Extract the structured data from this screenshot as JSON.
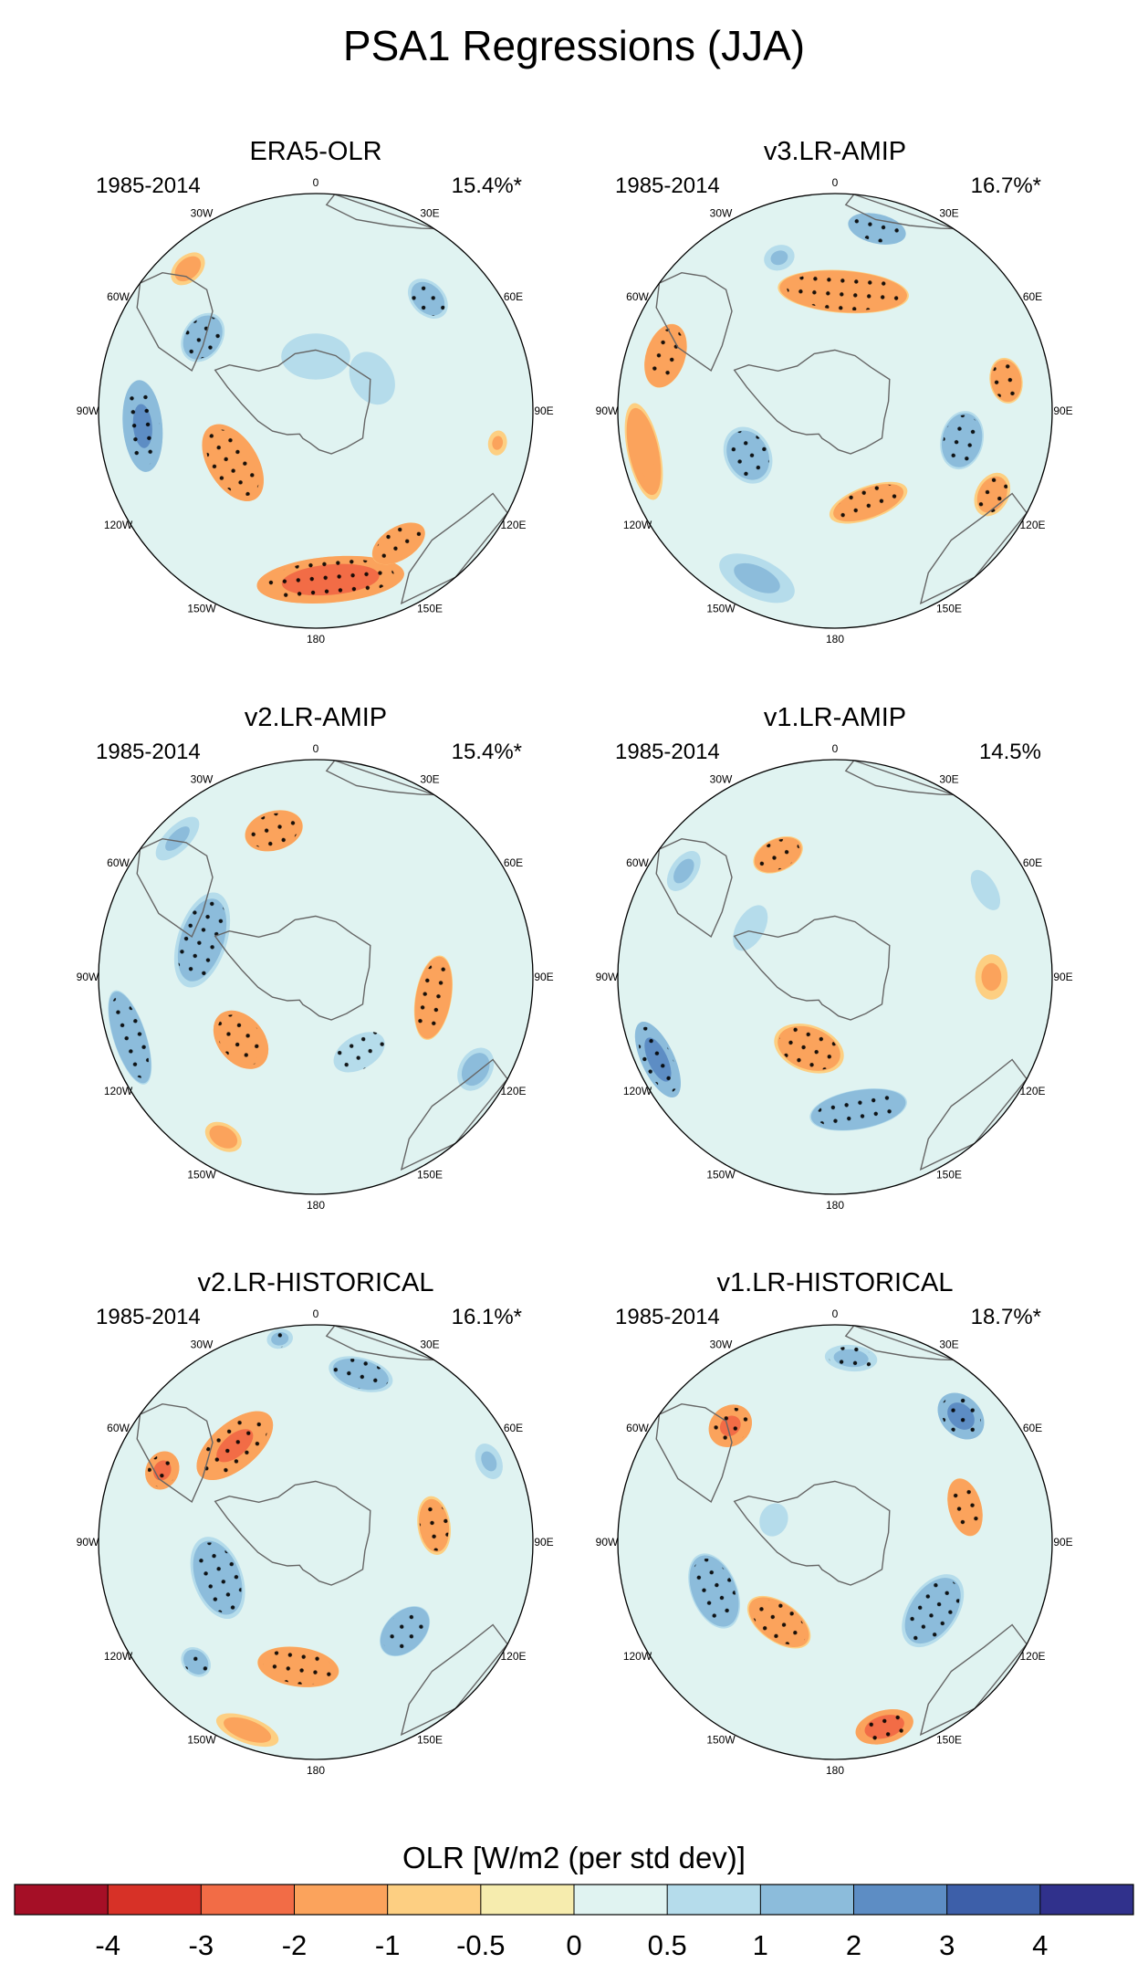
{
  "chart_data": {
    "type": "polar-contour-map",
    "title": "PSA1 Regressions (JJA)",
    "variable": "OLR",
    "colorbar": {
      "title": "OLR [W/m2 (per std dev)]",
      "levels": [
        "-4",
        "-3",
        "-2",
        "-1",
        "-0.5",
        "0",
        "0.5",
        "1",
        "2",
        "3",
        "4"
      ],
      "colors": [
        "#a50f26",
        "#d73127",
        "#f26c46",
        "#fba35c",
        "#fdcf82",
        "#f6ecae",
        "#e0f3f1",
        "#b5dceb",
        "#8cbcdb",
        "#5d8dc4",
        "#3d5fa9",
        "#30318c"
      ]
    },
    "lon_labels": [
      "0",
      "30E",
      "60E",
      "90E",
      "120E",
      "150E",
      "180",
      "150W",
      "120W",
      "90W",
      "60W",
      "30W"
    ],
    "panels": [
      {
        "name": "ERA5-OLR",
        "period": "1985-2014",
        "variance": "15.4%*",
        "blobs": [
          {
            "t": 175,
            "r": 0.78,
            "a": 45,
            "b": 14,
            "v": -3.3,
            "s": 1
          },
          {
            "t": 148,
            "r": 0.72,
            "a": 18,
            "b": 10,
            "v": -2.4,
            "s": 1
          },
          {
            "t": 238,
            "r": 0.45,
            "a": 26,
            "b": 15,
            "v": -2.5,
            "s": 1
          },
          {
            "t": 265,
            "r": 0.8,
            "a": 28,
            "b": 12,
            "v": 2.6,
            "s": 1
          },
          {
            "t": 303,
            "r": 0.62,
            "a": 16,
            "b": 12,
            "v": 2.0,
            "s": 1
          },
          {
            "t": 45,
            "r": 0.73,
            "a": 14,
            "b": 10,
            "v": 1.8,
            "s": 1
          },
          {
            "t": 318,
            "r": 0.88,
            "a": 12,
            "b": 8,
            "v": -1.6,
            "s": 0
          },
          {
            "t": 100,
            "r": 0.85,
            "a": 8,
            "b": 6,
            "v": -1.2,
            "s": 0
          },
          {
            "t": 60,
            "r": 0.3,
            "a": 20,
            "b": 15,
            "v": 1.0,
            "s": 0
          },
          {
            "t": 0,
            "r": 0.25,
            "a": 30,
            "b": 20,
            "v": 0.8,
            "s": 0
          }
        ]
      },
      {
        "name": "v3.LR-AMIP",
        "period": "1985-2014",
        "variance": "16.7%*",
        "blobs": [
          {
            "t": 4,
            "r": 0.55,
            "a": 40,
            "b": 13,
            "v": -2.3,
            "s": 1
          },
          {
            "t": 288,
            "r": 0.82,
            "a": 20,
            "b": 12,
            "v": -2.4,
            "s": 1
          },
          {
            "t": 258,
            "r": 0.9,
            "a": 30,
            "b": 10,
            "v": -2.0,
            "s": 0
          },
          {
            "t": 13,
            "r": 0.86,
            "a": 18,
            "b": 9,
            "v": 2.4,
            "s": 1
          },
          {
            "t": 103,
            "r": 0.6,
            "a": 18,
            "b": 13,
            "v": 2.1,
            "s": 1
          },
          {
            "t": 80,
            "r": 0.8,
            "a": 14,
            "b": 10,
            "v": -2.1,
            "s": 1
          },
          {
            "t": 160,
            "r": 0.45,
            "a": 25,
            "b": 10,
            "v": -2.0,
            "s": 1
          },
          {
            "t": 243,
            "r": 0.45,
            "a": 18,
            "b": 14,
            "v": 1.9,
            "s": 1
          },
          {
            "t": 118,
            "r": 0.82,
            "a": 14,
            "b": 10,
            "v": -1.8,
            "s": 1
          },
          {
            "t": 205,
            "r": 0.85,
            "a": 25,
            "b": 12,
            "v": 1.3,
            "s": 0
          },
          {
            "t": 340,
            "r": 0.75,
            "a": 10,
            "b": 8,
            "v": 1.2,
            "s": 0
          }
        ]
      },
      {
        "name": "v2.LR-AMIP",
        "period": "1985-2014",
        "variance": "15.4%*",
        "blobs": [
          {
            "t": 344,
            "r": 0.7,
            "a": 18,
            "b": 12,
            "v": -2.4,
            "s": 1
          },
          {
            "t": 230,
            "r": 0.45,
            "a": 20,
            "b": 14,
            "v": -2.5,
            "s": 1
          },
          {
            "t": 100,
            "r": 0.55,
            "a": 26,
            "b": 11,
            "v": -2.3,
            "s": 1
          },
          {
            "t": 210,
            "r": 0.85,
            "a": 12,
            "b": 8,
            "v": -1.6,
            "s": 0
          },
          {
            "t": 288,
            "r": 0.55,
            "a": 30,
            "b": 15,
            "v": 1.9,
            "s": 1
          },
          {
            "t": 252,
            "r": 0.9,
            "a": 30,
            "b": 10,
            "v": 2.3,
            "s": 1
          },
          {
            "t": 120,
            "r": 0.85,
            "a": 14,
            "b": 10,
            "v": 1.6,
            "s": 0
          },
          {
            "t": 150,
            "r": 0.4,
            "a": 20,
            "b": 12,
            "v": 1.0,
            "s": 1
          },
          {
            "t": 315,
            "r": 0.9,
            "a": 18,
            "b": 8,
            "v": 1.2,
            "s": 0
          }
        ]
      },
      {
        "name": "v1.LR-AMIP",
        "period": "1985-2014",
        "variance": "14.5%",
        "blobs": [
          {
            "t": 335,
            "r": 0.62,
            "a": 16,
            "b": 10,
            "v": -2.2,
            "s": 1
          },
          {
            "t": 245,
            "r": 0.9,
            "a": 25,
            "b": 10,
            "v": 3.0,
            "s": 1
          },
          {
            "t": 170,
            "r": 0.62,
            "a": 30,
            "b": 12,
            "v": 2.3,
            "s": 1
          },
          {
            "t": 200,
            "r": 0.35,
            "a": 22,
            "b": 14,
            "v": -2.0,
            "s": 1
          },
          {
            "t": 305,
            "r": 0.85,
            "a": 14,
            "b": 8,
            "v": 1.3,
            "s": 0
          },
          {
            "t": 90,
            "r": 0.72,
            "a": 14,
            "b": 10,
            "v": -1.3,
            "s": 0
          },
          {
            "t": 60,
            "r": 0.8,
            "a": 16,
            "b": 8,
            "v": 1.0,
            "s": 0
          },
          {
            "t": 300,
            "r": 0.45,
            "a": 18,
            "b": 10,
            "v": 1.0,
            "s": 0
          }
        ]
      },
      {
        "name": "v2.LR-HISTORICAL",
        "period": "1985-2014",
        "variance": "16.1%*",
        "blobs": [
          {
            "t": 320,
            "r": 0.58,
            "a": 28,
            "b": 14,
            "v": -2.6,
            "s": 1
          },
          {
            "t": 295,
            "r": 0.78,
            "a": 12,
            "b": 10,
            "v": -2.8,
            "s": 1
          },
          {
            "t": 82,
            "r": 0.55,
            "a": 18,
            "b": 10,
            "v": -2.0,
            "s": 1
          },
          {
            "t": 188,
            "r": 0.58,
            "a": 25,
            "b": 12,
            "v": -2.4,
            "s": 1
          },
          {
            "t": 200,
            "r": 0.92,
            "a": 20,
            "b": 8,
            "v": -1.6,
            "s": 0
          },
          {
            "t": 15,
            "r": 0.8,
            "a": 20,
            "b": 10,
            "v": 1.9,
            "s": 1
          },
          {
            "t": 250,
            "r": 0.48,
            "a": 26,
            "b": 15,
            "v": 2.0,
            "s": 1
          },
          {
            "t": 135,
            "r": 0.58,
            "a": 18,
            "b": 12,
            "v": 2.3,
            "s": 1
          },
          {
            "t": 225,
            "r": 0.78,
            "a": 10,
            "b": 8,
            "v": 1.8,
            "s": 1
          },
          {
            "t": 65,
            "r": 0.88,
            "a": 12,
            "b": 8,
            "v": 1.2,
            "s": 0
          },
          {
            "t": 350,
            "r": 0.95,
            "a": 8,
            "b": 6,
            "v": 1.4,
            "s": 1
          }
        ]
      },
      {
        "name": "v1.LR-HISTORICAL",
        "period": "1985-2014",
        "variance": "18.7%*",
        "blobs": [
          {
            "t": 318,
            "r": 0.72,
            "a": 14,
            "b": 12,
            "v": -2.6,
            "s": 1
          },
          {
            "t": 75,
            "r": 0.62,
            "a": 18,
            "b": 10,
            "v": -2.4,
            "s": 1
          },
          {
            "t": 165,
            "r": 0.88,
            "a": 18,
            "b": 10,
            "v": -3.4,
            "s": 1
          },
          {
            "t": 215,
            "r": 0.45,
            "a": 22,
            "b": 12,
            "v": -2.2,
            "s": 1
          },
          {
            "t": 248,
            "r": 0.6,
            "a": 24,
            "b": 14,
            "v": 2.2,
            "s": 1
          },
          {
            "t": 125,
            "r": 0.55,
            "a": 25,
            "b": 15,
            "v": 2.0,
            "s": 1
          },
          {
            "t": 45,
            "r": 0.82,
            "a": 16,
            "b": 12,
            "v": 3.0,
            "s": 1
          },
          {
            "t": 5,
            "r": 0.85,
            "a": 16,
            "b": 8,
            "v": 1.4,
            "s": 1
          },
          {
            "t": 290,
            "r": 0.3,
            "a": 12,
            "b": 10,
            "v": 1.0,
            "s": 0
          }
        ]
      }
    ]
  }
}
